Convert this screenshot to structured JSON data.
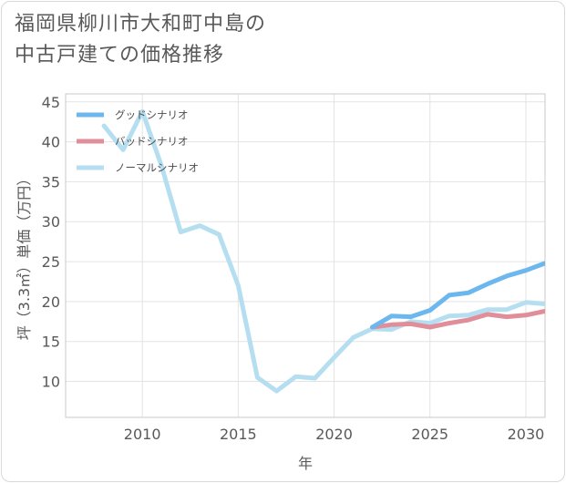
{
  "title_lines": [
    "福岡県柳川市大和町中島の",
    "中古戸建ての価格推移"
  ],
  "chart_data": {
    "type": "line",
    "title": "福岡県柳川市大和町中島の中古戸建ての価格推移",
    "xlabel": "年",
    "ylabel": "坪（3.3㎡）単価（万円）",
    "xlim": [
      2006,
      2031
    ],
    "ylim": [
      5.5,
      46
    ],
    "xticks": [
      2010,
      2015,
      2020,
      2025,
      2030
    ],
    "yticks": [
      10,
      15,
      20,
      25,
      30,
      35,
      40,
      45
    ],
    "grid": true,
    "legend_position": "top-left",
    "series": [
      {
        "name": "グッドシナリオ",
        "color": "#6cb8ee",
        "x": [
          2022,
          2023,
          2024,
          2025,
          2026,
          2027,
          2028,
          2029,
          2030,
          2031
        ],
        "y": [
          16.8,
          18.2,
          18.1,
          18.9,
          20.8,
          21.1,
          22.2,
          23.2,
          23.9,
          24.8
        ]
      },
      {
        "name": "バッドシナリオ",
        "color": "#e08e9a",
        "x": [
          2022,
          2023,
          2024,
          2025,
          2026,
          2027,
          2028,
          2029,
          2030,
          2031
        ],
        "y": [
          16.8,
          17.1,
          17.2,
          16.8,
          17.3,
          17.7,
          18.4,
          18.1,
          18.3,
          18.8
        ]
      },
      {
        "name": "ノーマルシナリオ",
        "color": "#b5dff0",
        "x": [
          2008,
          2009,
          2010,
          2011,
          2012,
          2013,
          2014,
          2015,
          2016,
          2017,
          2018,
          2019,
          2020,
          2021,
          2022,
          2023,
          2024,
          2025,
          2026,
          2027,
          2028,
          2029,
          2030,
          2031
        ],
        "y": [
          42.0,
          39.0,
          43.8,
          37.0,
          28.7,
          29.5,
          28.4,
          22.0,
          10.5,
          8.8,
          10.6,
          10.4,
          13.0,
          15.5,
          16.6,
          16.5,
          17.5,
          17.3,
          18.2,
          18.3,
          19.0,
          19.0,
          19.9,
          19.7
        ]
      }
    ]
  }
}
